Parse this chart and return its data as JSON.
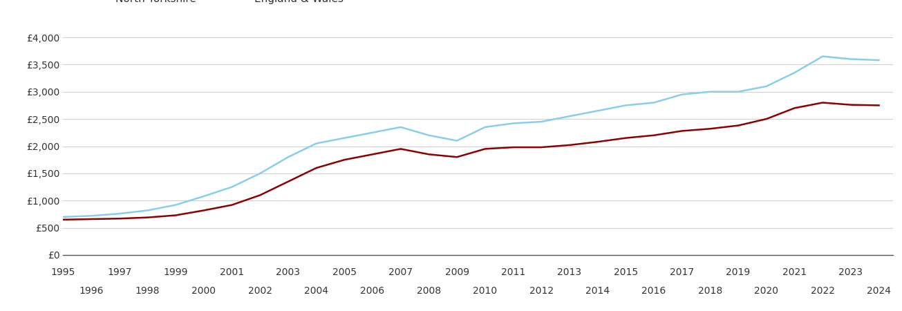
{
  "north_yorkshire": {
    "years": [
      1995,
      1996,
      1997,
      1998,
      1999,
      2000,
      2001,
      2002,
      2003,
      2004,
      2005,
      2006,
      2007,
      2008,
      2009,
      2010,
      2011,
      2012,
      2013,
      2014,
      2015,
      2016,
      2017,
      2018,
      2019,
      2020,
      2021,
      2022,
      2023,
      2024
    ],
    "values": [
      650,
      660,
      670,
      690,
      730,
      820,
      920,
      1100,
      1350,
      1600,
      1750,
      1850,
      1950,
      1850,
      1800,
      1950,
      1980,
      1980,
      2020,
      2080,
      2150,
      2200,
      2280,
      2320,
      2380,
      2500,
      2700,
      2800,
      2760,
      2750
    ]
  },
  "england_wales": {
    "years": [
      1995,
      1996,
      1997,
      1998,
      1999,
      2000,
      2001,
      2002,
      2003,
      2004,
      2005,
      2006,
      2007,
      2008,
      2009,
      2010,
      2011,
      2012,
      2013,
      2014,
      2015,
      2016,
      2017,
      2018,
      2019,
      2020,
      2021,
      2022,
      2023,
      2024
    ],
    "values": [
      700,
      720,
      760,
      820,
      920,
      1080,
      1250,
      1500,
      1800,
      2050,
      2150,
      2250,
      2350,
      2200,
      2100,
      2350,
      2420,
      2450,
      2550,
      2650,
      2750,
      2800,
      2950,
      3000,
      3000,
      3100,
      3350,
      3650,
      3600,
      3580
    ]
  },
  "north_yorkshire_color": "#8B0000",
  "england_wales_color": "#87CEEB",
  "ylim": [
    0,
    4000
  ],
  "yticks": [
    0,
    500,
    1000,
    1500,
    2000,
    2500,
    3000,
    3500,
    4000
  ],
  "ytick_labels": [
    "£0",
    "£500",
    "£1,000",
    "£1,500",
    "£2,000",
    "£2,500",
    "£3,000",
    "£3,500",
    "£4,000"
  ],
  "xlim_min": 1995,
  "xlim_max": 2024.5,
  "background_color": "#ffffff",
  "grid_color": "#d0d0d0",
  "line_width": 1.8,
  "font_color": "#333333",
  "tick_fontsize": 10,
  "legend_fontsize": 11
}
